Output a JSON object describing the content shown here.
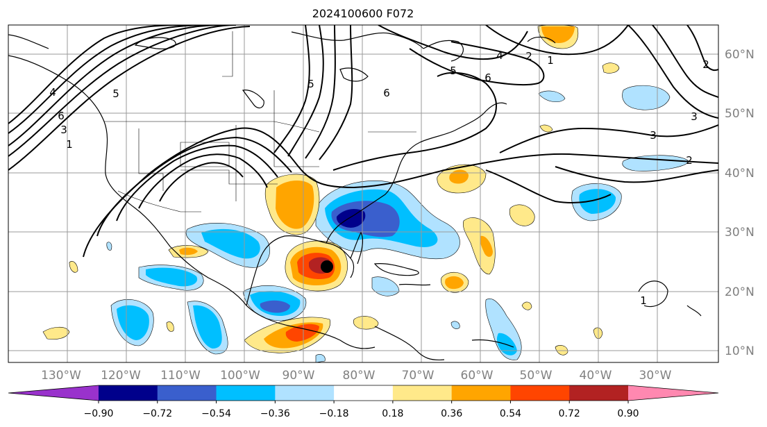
{
  "title": "2024100600 F072",
  "lon_labels": [
    "130°W",
    "120°W",
    "110°W",
    "100°W",
    "90°W",
    "80°W",
    "70°W",
    "60°W",
    "50°W",
    "40°W",
    "30°W"
  ],
  "lat_labels": [
    "60°N",
    "50°N",
    "40°N",
    "30°N",
    "20°N",
    "10°N"
  ],
  "colorbar": {
    "ticks": [
      "−0.90",
      "−0.72",
      "−0.54",
      "−0.36",
      "−0.18",
      "0.18",
      "0.36",
      "0.54",
      "0.72",
      "0.90"
    ],
    "colors": [
      "#9932cc",
      "#00008b",
      "#3a5fcd",
      "#00bfff",
      "#b0e2ff",
      "#ffffff",
      "#ffe98a",
      "#ffa500",
      "#ff4500",
      "#b22222",
      "#ff88b0"
    ]
  },
  "contour_labels": [
    "5",
    "6",
    "4",
    "3",
    "1",
    "5",
    "6",
    "5",
    "4",
    "2",
    "1",
    "6",
    "3",
    "2",
    "3",
    "2",
    "1"
  ],
  "storm_marker": "black-dot"
}
